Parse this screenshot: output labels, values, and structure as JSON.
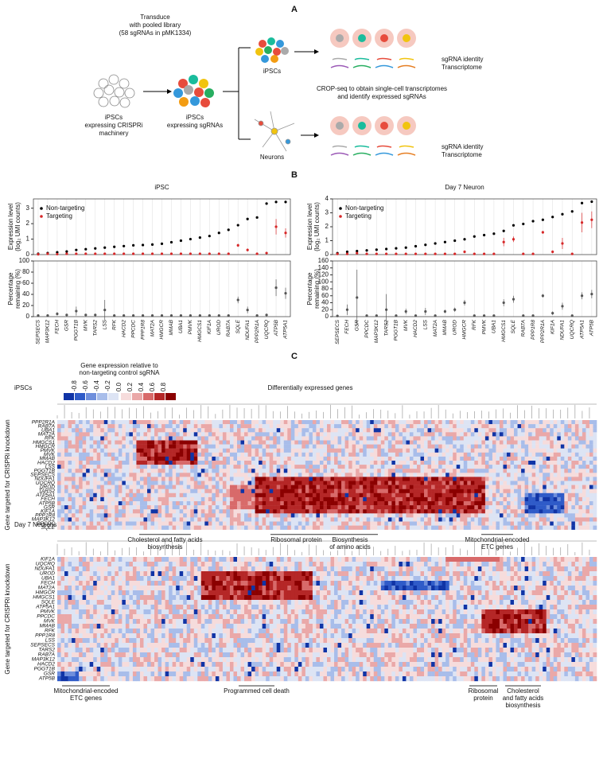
{
  "panel_a": {
    "label": "A",
    "transduce": [
      "Transduce",
      "with pooled library",
      "(58 sgRNAs in pMK1334)"
    ],
    "start_cells": [
      "iPSCs",
      "expressing CRISPRi",
      "machinery"
    ],
    "sg_cells": [
      "iPSCs",
      "expressing sgRNAs"
    ],
    "ipsc_label": "iPSCs",
    "neuron_label": "Neurons",
    "crop_seq": [
      "CROP-seq to obtain single-cell transcriptomes",
      "and identify expressed sgRNAs"
    ],
    "outputs_top": [
      "sgRNA identity",
      "Transcriptome"
    ],
    "outputs_bottom": [
      "sgRNA identity",
      "Transcriptome"
    ]
  },
  "panel_b": {
    "label": "B"
  },
  "chart_data": [
    {
      "type": "dot",
      "title": "iPSC",
      "y_label": [
        "Expression level",
        "(log₂ UMI counts)"
      ],
      "legend": "upper left",
      "ylim": [
        0,
        3.6
      ],
      "yticks": [
        0,
        1,
        2,
        3
      ],
      "series": [
        {
          "name": "Non-targeting",
          "color": "#000000",
          "values": [
            0.05,
            0.1,
            0.15,
            0.2,
            0.3,
            0.35,
            0.4,
            0.45,
            0.5,
            0.55,
            0.6,
            0.62,
            0.65,
            0.7,
            0.8,
            0.9,
            1.0,
            1.1,
            1.2,
            1.4,
            1.6,
            1.9,
            2.3,
            2.4,
            3.3,
            3.4,
            3.4
          ]
        },
        {
          "name": "Targeting",
          "color": "#d62728",
          "values": [
            0.02,
            0.05,
            0.03,
            0.05,
            0.05,
            0.05,
            0.05,
            0.05,
            0.05,
            0.05,
            0.05,
            0.05,
            0.05,
            0.05,
            0.05,
            0.05,
            0.05,
            0.05,
            0.05,
            0.05,
            0.05,
            0.6,
            0.3,
            0.05,
            0.1,
            1.8,
            1.4
          ],
          "errors": [
            0,
            0,
            0,
            0,
            0,
            0,
            0,
            0,
            0,
            0,
            0,
            0,
            0,
            0,
            0,
            0,
            0,
            0,
            0,
            0,
            0,
            0.1,
            0.1,
            0,
            0,
            0.5,
            0.3
          ]
        }
      ]
    },
    {
      "type": "dot",
      "y_label": [
        "Percentage",
        "remaining (%)"
      ],
      "ylim": [
        0,
        100
      ],
      "yticks": [
        0,
        20,
        40,
        60,
        80,
        100
      ],
      "categories": [
        "SEPSECS",
        "MAP3K12",
        "FECH",
        "GSR",
        "PGGT1B",
        "MVK",
        "TARS2",
        "LSS",
        "RFK",
        "HACD2",
        "PPCDC",
        "PPP1R8",
        "MAT2A",
        "HMGCR",
        "MMAB",
        "UBA1",
        "PMVK",
        "HMGCS1",
        "KIF1A",
        "UROD",
        "RAB7A",
        "SQLE",
        "NDUFA1",
        "PPP2R1A",
        "UQCRQ",
        "ATP5B",
        "ATP5A1"
      ],
      "series": [
        {
          "name": "Percentage remaining",
          "color": "#555555",
          "values": [
            2,
            2,
            5,
            3,
            10,
            3,
            3,
            12,
            2,
            2,
            2,
            2,
            2,
            2,
            2,
            2,
            2,
            2,
            2,
            2,
            2,
            30,
            12,
            2,
            3,
            52,
            42
          ],
          "errors": [
            1,
            1,
            3,
            1,
            8,
            1,
            1,
            18,
            1,
            1,
            1,
            1,
            1,
            1,
            1,
            1,
            1,
            1,
            1,
            1,
            1,
            6,
            6,
            1,
            1,
            15,
            10
          ]
        }
      ]
    },
    {
      "type": "dot",
      "title": "Day 7 Neuron",
      "y_label": [
        "Expression level",
        "(log₂ UMI counts)"
      ],
      "legend": "upper left",
      "ylim": [
        0,
        4
      ],
      "yticks": [
        0,
        1,
        2,
        3,
        4
      ],
      "series": [
        {
          "name": "Non-targeting",
          "color": "#000000",
          "values": [
            0.1,
            0.2,
            0.25,
            0.3,
            0.35,
            0.4,
            0.45,
            0.5,
            0.6,
            0.7,
            0.8,
            0.9,
            1.0,
            1.1,
            1.3,
            1.4,
            1.5,
            1.7,
            2.1,
            2.2,
            2.4,
            2.5,
            2.7,
            2.9,
            3.1,
            3.7,
            3.8
          ]
        },
        {
          "name": "Targeting",
          "color": "#d62728",
          "values": [
            0.05,
            0.05,
            0.1,
            0.05,
            0.05,
            0.05,
            0.05,
            0.05,
            0.05,
            0.05,
            0.05,
            0.05,
            0.05,
            0.2,
            0.05,
            0.05,
            0.05,
            0.9,
            1.1,
            0.05,
            0.05,
            1.6,
            0.2,
            0.8,
            0.05,
            2.3,
            2.5
          ],
          "errors": [
            0,
            0,
            0,
            0,
            0,
            0,
            0,
            0,
            0,
            0,
            0,
            0,
            0,
            0.1,
            0,
            0,
            0,
            0.3,
            0.2,
            0,
            0,
            0.1,
            0.1,
            0.4,
            0,
            0.7,
            0.6
          ]
        }
      ]
    },
    {
      "type": "dot",
      "y_label": [
        "Percentage",
        "remaining (%)"
      ],
      "ylim": [
        0,
        160
      ],
      "yticks": [
        0,
        20,
        40,
        60,
        80,
        100,
        120,
        140,
        160
      ],
      "categories": [
        "SEPSECS",
        "FECH",
        "GSR",
        "PPCDC",
        "MAP3K12",
        "TARS2",
        "PGGT1B",
        "MVK",
        "HACD2",
        "LSS",
        "MAT2A",
        "MMAB",
        "UROD",
        "HMGCR",
        "RFK",
        "PMVK",
        "UBA1",
        "HMGCS1",
        "SQLE",
        "RAB7A",
        "PPP1R8",
        "PPP2R1A",
        "KIF1A",
        "NDUFA1",
        "UQCRQ",
        "ATP5A1",
        "ATP5B"
      ],
      "series": [
        {
          "name": "Percentage remaining",
          "color": "#555555",
          "values": [
            2,
            20,
            55,
            3,
            3,
            20,
            3,
            15,
            3,
            15,
            3,
            15,
            20,
            40,
            3,
            3,
            3,
            40,
            50,
            3,
            3,
            60,
            10,
            30,
            3,
            60,
            65
          ],
          "errors": [
            1,
            15,
            80,
            2,
            2,
            45,
            2,
            8,
            2,
            10,
            2,
            5,
            6,
            8,
            2,
            2,
            2,
            10,
            10,
            2,
            2,
            5,
            5,
            10,
            2,
            10,
            12
          ]
        }
      ]
    }
  ],
  "panel_c": {
    "label": "C",
    "colorbar_title": [
      "Gene expression relative to",
      "non-targeting control sgRNA"
    ],
    "colorbar_ticks": [
      -0.8,
      -0.6,
      -0.4,
      -0.2,
      {
        "value": 0,
        "label": "0.0"
      },
      0.2,
      0.4,
      0.6,
      0.8
    ],
    "y_label": "Gene targeted for CRISPRi knockdown",
    "heatmaps": [
      {
        "title": "iPSCs",
        "column_label": "Differentially expressed genes",
        "rows": [
          "PPP2R1A",
          "RAB7A",
          "UBA1",
          "MAT2A",
          "RFK",
          "HMGCS1",
          "HMGCR",
          "PMVK",
          "MVK",
          "MMAB",
          "HACD2",
          "LSS",
          "PGGT1B",
          "SEPSECS",
          "NDUFA1",
          "UQCRQ",
          "UROD",
          "TARS2",
          "ATP5A1",
          "FECH",
          "ATP5B",
          "GSR",
          "KIF1A",
          "PPP1R8",
          "MAP3K12",
          "PPCDC",
          "SQLE"
        ],
        "annotations": [
          [
            "Cholesterol and fatty acids",
            "biosynthesis"
          ],
          [
            "Ribosomal protein"
          ],
          [
            "Biosynthesis",
            "of amino acids"
          ],
          [
            "Mitochondrial-encoded",
            "ETC genes"
          ]
        ]
      },
      {
        "title": "Day 7 Neurons",
        "rows": [
          "KIF1A",
          "UQCRQ",
          "NDUFA1",
          "UROD",
          "UBA1",
          "FECH",
          "MAT2A",
          "HMGCR",
          "HMGCS1",
          "SQLE",
          "ATP5A1",
          "PMVK",
          "PPCDC",
          "MVK",
          "MMAB",
          "RFK",
          "PPP1R8",
          "LSS",
          "SEPSECS",
          "TARS2",
          "RAB7A",
          "MAP3K12",
          "HACD2",
          "PGGT1B",
          "GSR",
          "ATP5B"
        ],
        "annotations": [
          [
            "Mitochondrial-encoded",
            "ETC genes"
          ],
          [
            "Programmed cell death"
          ],
          [
            "Ribosomal",
            "protein"
          ],
          [
            "Cholesterol",
            "and fatty acids",
            "biosynthesis"
          ]
        ]
      }
    ]
  }
}
